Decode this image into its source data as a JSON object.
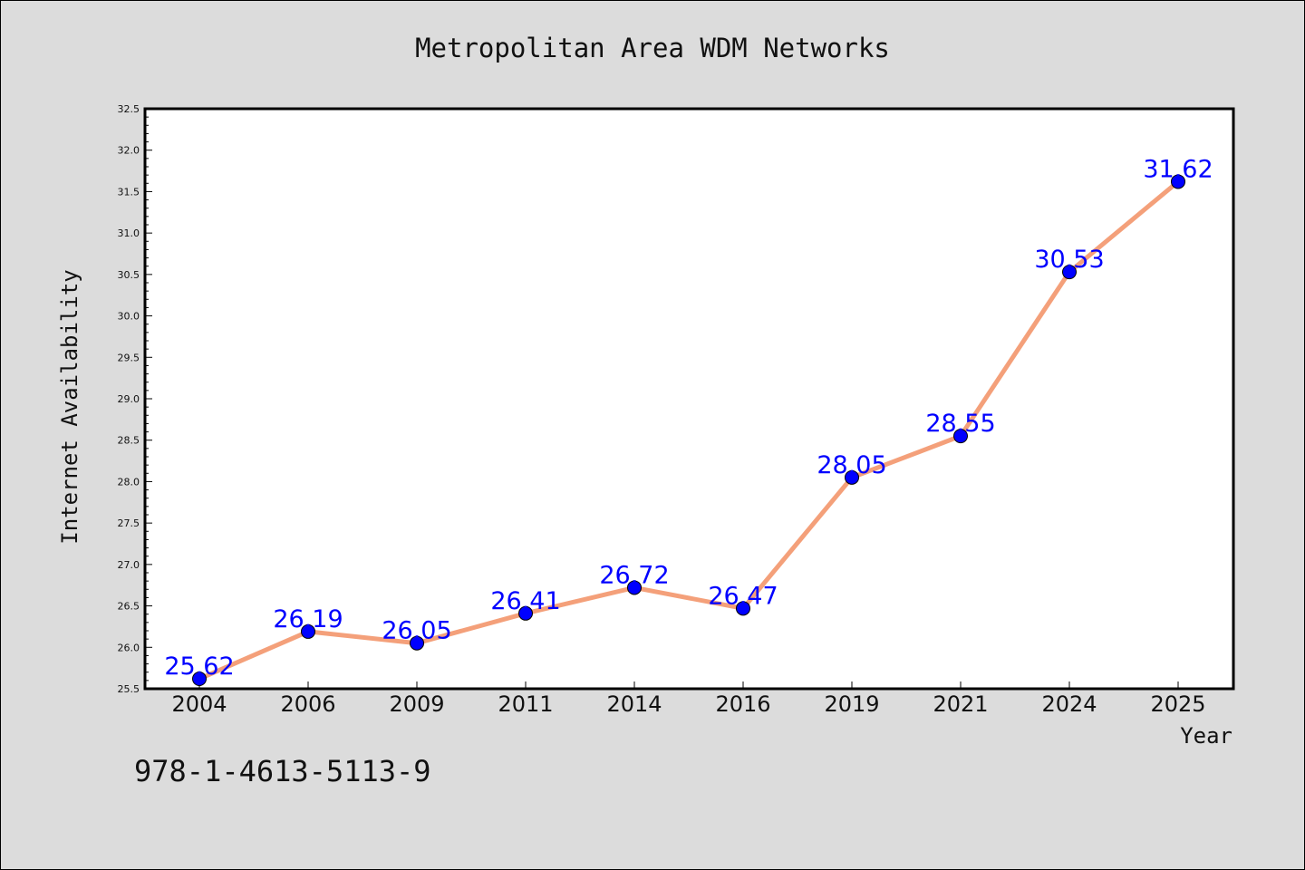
{
  "chart_data": {
    "type": "line",
    "title": "Metropolitan Area WDM Networks",
    "xlabel": "Year",
    "ylabel": "Internet Availability",
    "categories": [
      "2004",
      "2006",
      "2009",
      "2011",
      "2014",
      "2016",
      "2019",
      "2021",
      "2024",
      "2025"
    ],
    "series": [
      {
        "values": [
          25.62,
          26.19,
          26.05,
          26.41,
          26.72,
          26.47,
          28.05,
          28.55,
          30.53,
          31.62
        ],
        "labels": [
          "25.62",
          "26.19",
          "26.05",
          "26.41",
          "26.72",
          "26.47",
          "28.05",
          "28.55",
          "30.53",
          "31.62"
        ],
        "line_color": "#f4a07a",
        "marker_color": "#0000ff",
        "label_color": "#0000ff"
      }
    ],
    "ylim": [
      25.5,
      32.5
    ],
    "yticks": [
      "25.5",
      "26.0",
      "26.5",
      "27.0",
      "27.5",
      "28.0",
      "28.5",
      "29.0",
      "29.5",
      "30.0",
      "30.5",
      "31.0",
      "31.5",
      "32.0",
      "32.5"
    ],
    "grid": false,
    "legend": "none"
  },
  "isbn": "978-1-4613-5113-9",
  "colors": {
    "background": "#dcdcdc",
    "plot_background": "#ffffff",
    "axis": "#000000",
    "text": "#111111"
  }
}
